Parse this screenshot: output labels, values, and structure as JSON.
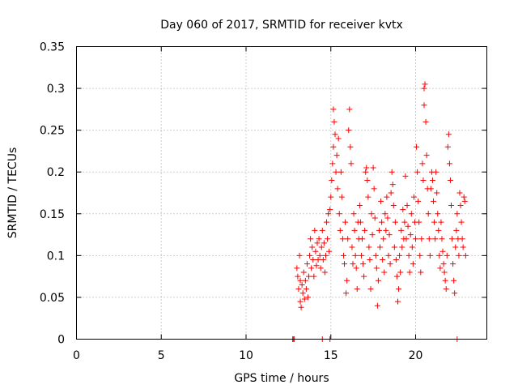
{
  "chart_data": {
    "type": "scatter",
    "title": "Day 060 of 2017, SRMTID for receiver kvtx",
    "xlabel": "GPS time / hours",
    "ylabel": "SRMTID / TECUs",
    "xlim": [
      0,
      24.2
    ],
    "ylim": [
      0,
      0.35
    ],
    "x_ticks": [
      0,
      5,
      10,
      15,
      20
    ],
    "x_tick_labels": [
      "0",
      "5",
      "10",
      "15",
      "20"
    ],
    "y_ticks": [
      0,
      0.05,
      0.1,
      0.15,
      0.2,
      0.25,
      0.3,
      0.35
    ],
    "y_tick_labels": [
      "0",
      "0.05",
      "0.1",
      "0.15",
      "0.2",
      "0.25",
      "0.3",
      "0.35"
    ],
    "grid": true,
    "marker": "+",
    "color": "#ff0000",
    "series": [
      {
        "name": "SRMTID",
        "points": [
          [
            12.75,
            0.0
          ],
          [
            12.8,
            0.0
          ],
          [
            12.85,
            0.0
          ],
          [
            14.5,
            0.0
          ],
          [
            14.95,
            0.0
          ],
          [
            22.45,
            0.0
          ],
          [
            13.0,
            0.085
          ],
          [
            13.05,
            0.075
          ],
          [
            13.1,
            0.06
          ],
          [
            13.15,
            0.1
          ],
          [
            13.2,
            0.045
          ],
          [
            13.2,
            0.07
          ],
          [
            13.25,
            0.038
          ],
          [
            13.3,
            0.065
          ],
          [
            13.35,
            0.055
          ],
          [
            13.4,
            0.08
          ],
          [
            13.45,
            0.048
          ],
          [
            13.5,
            0.07
          ],
          [
            13.55,
            0.06
          ],
          [
            13.6,
            0.09
          ],
          [
            13.65,
            0.05
          ],
          [
            13.7,
            0.075
          ],
          [
            13.75,
            0.1
          ],
          [
            13.8,
            0.12
          ],
          [
            13.85,
            0.085
          ],
          [
            13.9,
            0.11
          ],
          [
            13.95,
            0.095
          ],
          [
            14.0,
            0.075
          ],
          [
            14.05,
            0.13
          ],
          [
            14.1,
            0.105
          ],
          [
            14.15,
            0.088
          ],
          [
            14.2,
            0.115
          ],
          [
            14.25,
            0.095
          ],
          [
            14.3,
            0.12
          ],
          [
            14.35,
            0.1
          ],
          [
            14.4,
            0.085
          ],
          [
            14.45,
            0.11
          ],
          [
            14.5,
            0.13
          ],
          [
            14.55,
            0.095
          ],
          [
            14.6,
            0.115
          ],
          [
            14.65,
            0.08
          ],
          [
            14.7,
            0.1
          ],
          [
            14.75,
            0.14
          ],
          [
            14.8,
            0.12
          ],
          [
            14.85,
            0.15
          ],
          [
            14.9,
            0.105
          ],
          [
            14.95,
            0.155
          ],
          [
            15.0,
            0.17
          ],
          [
            15.05,
            0.19
          ],
          [
            15.1,
            0.21
          ],
          [
            15.15,
            0.23
          ],
          [
            15.15,
            0.275
          ],
          [
            15.2,
            0.26
          ],
          [
            15.25,
            0.245
          ],
          [
            15.3,
            0.2
          ],
          [
            15.35,
            0.22
          ],
          [
            15.4,
            0.18
          ],
          [
            15.45,
            0.24
          ],
          [
            15.5,
            0.15
          ],
          [
            15.55,
            0.13
          ],
          [
            15.6,
            0.2
          ],
          [
            15.65,
            0.17
          ],
          [
            15.7,
            0.12
          ],
          [
            15.75,
            0.1
          ],
          [
            15.8,
            0.09
          ],
          [
            15.85,
            0.14
          ],
          [
            15.9,
            0.055
          ],
          [
            15.95,
            0.07
          ],
          [
            16.0,
            0.12
          ],
          [
            16.05,
            0.25
          ],
          [
            16.1,
            0.275
          ],
          [
            16.15,
            0.23
          ],
          [
            16.2,
            0.21
          ],
          [
            16.25,
            0.11
          ],
          [
            16.3,
            0.09
          ],
          [
            16.35,
            0.15
          ],
          [
            16.4,
            0.13
          ],
          [
            16.45,
            0.1
          ],
          [
            16.5,
            0.085
          ],
          [
            16.55,
            0.06
          ],
          [
            16.6,
            0.14
          ],
          [
            16.65,
            0.12
          ],
          [
            16.7,
            0.16
          ],
          [
            16.75,
            0.14
          ],
          [
            16.8,
            0.1
          ],
          [
            16.85,
            0.12
          ],
          [
            16.9,
            0.09
          ],
          [
            16.95,
            0.075
          ],
          [
            17.0,
            0.13
          ],
          [
            17.05,
            0.2
          ],
          [
            17.1,
            0.205
          ],
          [
            17.15,
            0.19
          ],
          [
            17.2,
            0.17
          ],
          [
            17.25,
            0.11
          ],
          [
            17.3,
            0.095
          ],
          [
            17.35,
            0.06
          ],
          [
            17.4,
            0.15
          ],
          [
            17.45,
            0.125
          ],
          [
            17.5,
            0.205
          ],
          [
            17.55,
            0.18
          ],
          [
            17.6,
            0.145
          ],
          [
            17.65,
            0.1
          ],
          [
            17.7,
            0.085
          ],
          [
            17.75,
            0.04
          ],
          [
            17.8,
            0.07
          ],
          [
            17.85,
            0.13
          ],
          [
            17.9,
            0.11
          ],
          [
            17.95,
            0.165
          ],
          [
            18.0,
            0.14
          ],
          [
            18.05,
            0.095
          ],
          [
            18.1,
            0.12
          ],
          [
            18.15,
            0.08
          ],
          [
            18.2,
            0.15
          ],
          [
            18.25,
            0.13
          ],
          [
            18.3,
            0.17
          ],
          [
            18.35,
            0.145
          ],
          [
            18.4,
            0.1
          ],
          [
            18.45,
            0.125
          ],
          [
            18.5,
            0.09
          ],
          [
            18.55,
            0.175
          ],
          [
            18.6,
            0.2
          ],
          [
            18.65,
            0.185
          ],
          [
            18.7,
            0.16
          ],
          [
            18.75,
            0.11
          ],
          [
            18.8,
            0.14
          ],
          [
            18.85,
            0.095
          ],
          [
            18.9,
            0.075
          ],
          [
            18.95,
            0.045
          ],
          [
            19.0,
            0.06
          ],
          [
            19.05,
            0.1
          ],
          [
            19.1,
            0.08
          ],
          [
            19.15,
            0.13
          ],
          [
            19.2,
            0.11
          ],
          [
            19.25,
            0.155
          ],
          [
            19.3,
            0.12
          ],
          [
            19.35,
            0.14
          ],
          [
            19.4,
            0.195
          ],
          [
            19.45,
            0.12
          ],
          [
            19.5,
            0.16
          ],
          [
            19.55,
            0.135
          ],
          [
            19.6,
            0.1
          ],
          [
            19.65,
            0.08
          ],
          [
            19.7,
            0.125
          ],
          [
            19.75,
            0.15
          ],
          [
            19.8,
            0.11
          ],
          [
            19.85,
            0.09
          ],
          [
            19.9,
            0.17
          ],
          [
            19.95,
            0.14
          ],
          [
            20.0,
            0.12
          ],
          [
            20.05,
            0.23
          ],
          [
            20.1,
            0.2
          ],
          [
            20.15,
            0.165
          ],
          [
            20.2,
            0.14
          ],
          [
            20.25,
            0.1
          ],
          [
            20.3,
            0.08
          ],
          [
            20.35,
            0.12
          ],
          [
            20.4,
            0.21
          ],
          [
            20.45,
            0.19
          ],
          [
            20.5,
            0.3
          ],
          [
            20.5,
            0.28
          ],
          [
            20.55,
            0.305
          ],
          [
            20.6,
            0.26
          ],
          [
            20.65,
            0.22
          ],
          [
            20.7,
            0.18
          ],
          [
            20.75,
            0.15
          ],
          [
            20.8,
            0.12
          ],
          [
            20.85,
            0.1
          ],
          [
            20.9,
            0.18
          ],
          [
            20.95,
            0.2
          ],
          [
            21.0,
            0.19
          ],
          [
            21.05,
            0.165
          ],
          [
            21.1,
            0.14
          ],
          [
            21.15,
            0.12
          ],
          [
            21.2,
            0.2
          ],
          [
            21.25,
            0.175
          ],
          [
            21.3,
            0.15
          ],
          [
            21.35,
            0.13
          ],
          [
            21.4,
            0.1
          ],
          [
            21.45,
            0.085
          ],
          [
            21.5,
            0.14
          ],
          [
            21.55,
            0.12
          ],
          [
            21.6,
            0.105
          ],
          [
            21.65,
            0.09
          ],
          [
            21.7,
            0.08
          ],
          [
            21.75,
            0.07
          ],
          [
            21.8,
            0.06
          ],
          [
            21.85,
            0.1
          ],
          [
            21.9,
            0.23
          ],
          [
            21.95,
            0.245
          ],
          [
            22.0,
            0.21
          ],
          [
            22.05,
            0.19
          ],
          [
            22.1,
            0.16
          ],
          [
            22.15,
            0.12
          ],
          [
            22.2,
            0.09
          ],
          [
            22.25,
            0.07
          ],
          [
            22.3,
            0.055
          ],
          [
            22.35,
            0.11
          ],
          [
            22.4,
            0.13
          ],
          [
            22.45,
            0.15
          ],
          [
            22.5,
            0.12
          ],
          [
            22.55,
            0.1
          ],
          [
            22.6,
            0.175
          ],
          [
            22.65,
            0.16
          ],
          [
            22.7,
            0.14
          ],
          [
            22.75,
            0.12
          ],
          [
            22.8,
            0.11
          ],
          [
            22.85,
            0.17
          ],
          [
            22.9,
            0.165
          ],
          [
            22.95,
            0.1
          ]
        ]
      }
    ]
  }
}
